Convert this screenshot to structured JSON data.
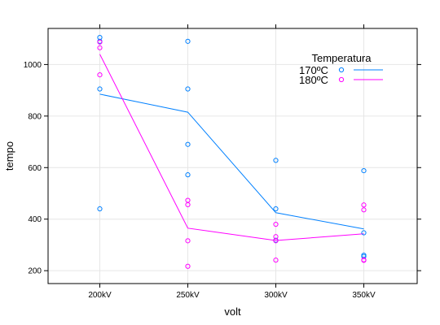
{
  "chart_data": {
    "type": "scatter",
    "xlabel": "volt",
    "ylabel": "tempo",
    "categories": [
      "200kV",
      "250kV",
      "300kV",
      "350kV"
    ],
    "ylim": [
      150,
      1140
    ],
    "yticks": [
      200,
      400,
      600,
      800,
      1000
    ],
    "grid": true,
    "legend": {
      "title": "Temperatura",
      "placement": "top-right"
    },
    "series": [
      {
        "name": "170ºC",
        "color": "#0080ff",
        "points": [
          {
            "x": "200kV",
            "y": 1105
          },
          {
            "x": "200kV",
            "y": 1090
          },
          {
            "x": "200kV",
            "y": 905
          },
          {
            "x": "200kV",
            "y": 440
          },
          {
            "x": "250kV",
            "y": 1090
          },
          {
            "x": "250kV",
            "y": 905
          },
          {
            "x": "250kV",
            "y": 690
          },
          {
            "x": "250kV",
            "y": 572
          },
          {
            "x": "300kV",
            "y": 628
          },
          {
            "x": "300kV",
            "y": 440
          },
          {
            "x": "300kV",
            "y": 318
          },
          {
            "x": "350kV",
            "y": 588
          },
          {
            "x": "350kV",
            "y": 347
          },
          {
            "x": "350kV",
            "y": 260
          },
          {
            "x": "350kV",
            "y": 255
          }
        ],
        "line": [
          {
            "x": "200kV",
            "y": 885
          },
          {
            "x": "250kV",
            "y": 815
          },
          {
            "x": "300kV",
            "y": 425
          },
          {
            "x": "350kV",
            "y": 362
          }
        ]
      },
      {
        "name": "180ºC",
        "color": "#ff00ff",
        "points": [
          {
            "x": "200kV",
            "y": 1087
          },
          {
            "x": "200kV",
            "y": 1065
          },
          {
            "x": "200kV",
            "y": 960
          },
          {
            "x": "250kV",
            "y": 473
          },
          {
            "x": "250kV",
            "y": 456
          },
          {
            "x": "250kV",
            "y": 316
          },
          {
            "x": "250kV",
            "y": 217
          },
          {
            "x": "300kV",
            "y": 380
          },
          {
            "x": "300kV",
            "y": 332
          },
          {
            "x": "300kV",
            "y": 316
          },
          {
            "x": "300kV",
            "y": 241
          },
          {
            "x": "350kV",
            "y": 455
          },
          {
            "x": "350kV",
            "y": 436
          },
          {
            "x": "350kV",
            "y": 242
          },
          {
            "x": "350kV",
            "y": 240
          }
        ],
        "line": [
          {
            "x": "200kV",
            "y": 1040
          },
          {
            "x": "250kV",
            "y": 365
          },
          {
            "x": "300kV",
            "y": 317
          },
          {
            "x": "350kV",
            "y": 343
          }
        ]
      }
    ]
  }
}
